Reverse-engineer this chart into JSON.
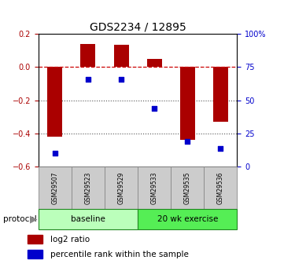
{
  "title": "GDS2234 / 12895",
  "samples": [
    "GSM29507",
    "GSM29523",
    "GSM29529",
    "GSM29533",
    "GSM29535",
    "GSM29536"
  ],
  "log2_ratio": [
    -0.42,
    0.14,
    0.135,
    0.05,
    -0.44,
    -0.33
  ],
  "percentile_rank": [
    10,
    66,
    66,
    44,
    19,
    14
  ],
  "bar_color": "#aa0000",
  "dot_color": "#0000cc",
  "ylim_left": [
    -0.6,
    0.2
  ],
  "ylim_right": [
    0,
    100
  ],
  "yticks_left": [
    0.2,
    0.0,
    -0.2,
    -0.4,
    -0.6
  ],
  "yticks_right": [
    100,
    75,
    50,
    25,
    0
  ],
  "ytick_labels_right": [
    "100%",
    "75",
    "50",
    "25",
    "0"
  ],
  "n_baseline": 3,
  "n_exercise": 3,
  "baseline_label": "baseline",
  "exercise_label": "20 wk exercise",
  "protocol_label": "protocol",
  "legend_bar_label": "log2 ratio",
  "legend_dot_label": "percentile rank within the sample",
  "baseline_color": "#bbffbb",
  "exercise_color": "#55ee55",
  "tick_box_color": "#cccccc",
  "hline_color": "#cc0000",
  "dotted_line_color": "#555555",
  "title_fontsize": 10,
  "tick_label_fontsize": 7,
  "legend_fontsize": 7.5
}
